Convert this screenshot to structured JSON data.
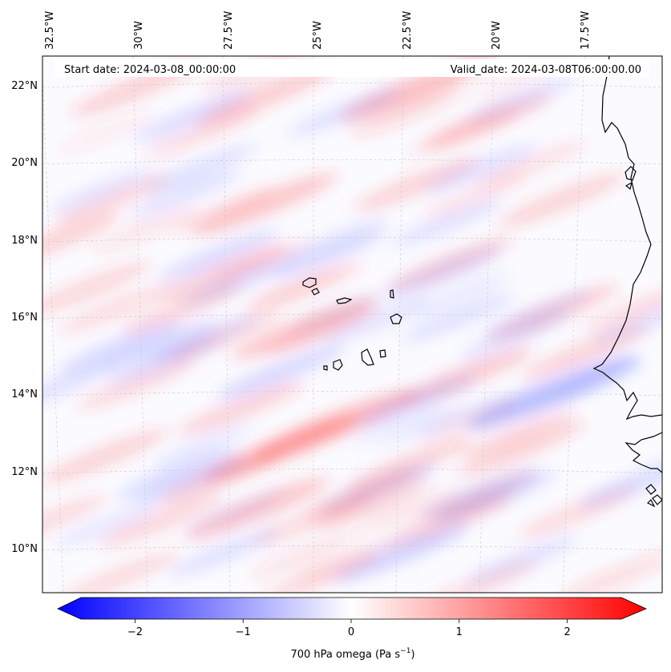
{
  "header": {
    "start_date": "Start date: 2024-03-08_00:00:00",
    "valid_date": "Valid_date: 2024-03-08T06:00:00.00"
  },
  "map": {
    "lon_ticks": [
      "32.5°W",
      "30°W",
      "27.5°W",
      "25°W",
      "22.5°W",
      "20°W",
      "17.5°W"
    ],
    "lat_ticks": [
      "22°N",
      "20°N",
      "18°N",
      "16°N",
      "14°N",
      "12°N",
      "10°N"
    ],
    "field_colors": {
      "positive": "#ff0000",
      "neutral": "#ffffff",
      "negative": "#0000ff"
    },
    "coastline_color": "#000000"
  },
  "colorbar": {
    "ticks": [
      "−2",
      "−1",
      "0",
      "1",
      "2"
    ],
    "tick_values": [
      -2,
      -1,
      0,
      1,
      2
    ],
    "range": [
      -2.5,
      2.5
    ],
    "label_prefix": "700 hPa omega (Pa s",
    "label_exp": "−1",
    "label_suffix": ")"
  }
}
